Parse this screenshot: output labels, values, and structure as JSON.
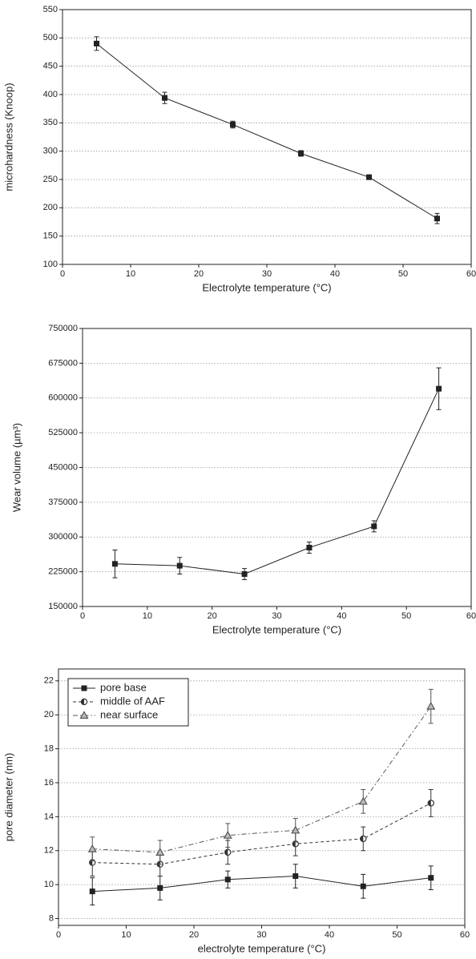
{
  "chart_data": [
    {
      "type": "line",
      "x_label": "Electrolyte temperature (°C)",
      "y_label": "microhardness (Knoop)",
      "x": [
        5,
        15,
        25,
        35,
        45,
        55
      ],
      "values": [
        490,
        394,
        347,
        296,
        254,
        181
      ],
      "errors": [
        12,
        10,
        6,
        5,
        4,
        9
      ],
      "color": "#222222",
      "marker": "square",
      "line_style": "solid",
      "xlim": [
        0,
        60
      ],
      "xticks": [
        0,
        10,
        20,
        30,
        40,
        50,
        60
      ],
      "ylim": [
        100,
        550
      ],
      "yticks": [
        100,
        150,
        200,
        250,
        300,
        350,
        400,
        450,
        500,
        550
      ],
      "grid": true
    },
    {
      "type": "line",
      "x_label": "Electrolyte temperature (°C)",
      "y_label": "Wear volume (µm³)",
      "x": [
        5,
        15,
        25,
        35,
        45,
        55
      ],
      "values": [
        242000,
        238000,
        220000,
        277000,
        323000,
        620000
      ],
      "errors": [
        30000,
        18000,
        12000,
        12000,
        12000,
        45000
      ],
      "color": "#222222",
      "marker": "square",
      "line_style": "solid",
      "xlim": [
        0,
        60
      ],
      "xticks": [
        0,
        10,
        20,
        30,
        40,
        50,
        60
      ],
      "ylim": [
        150000,
        750000
      ],
      "yticks": [
        150000,
        225000,
        300000,
        375000,
        450000,
        525000,
        600000,
        675000,
        750000
      ],
      "grid": true
    },
    {
      "type": "line",
      "x_label": "electrolyte temperature (°C)",
      "y_label": "pore diameter (nm)",
      "x": [
        5,
        15,
        25,
        35,
        45,
        55
      ],
      "series": [
        {
          "name": "pore base",
          "color": "#222222",
          "marker": "square",
          "line_style": "solid",
          "values": [
            9.6,
            9.8,
            10.3,
            10.5,
            9.9,
            10.4
          ],
          "errors": [
            0.8,
            0.7,
            0.5,
            0.7,
            0.7,
            0.7
          ]
        },
        {
          "name": "middle of AAF",
          "color": "#333333",
          "marker": "circle",
          "line_style": "dashed",
          "values": [
            11.3,
            11.2,
            11.9,
            12.4,
            12.7,
            14.8
          ],
          "errors": [
            0.8,
            0.7,
            0.7,
            0.7,
            0.7,
            0.8
          ]
        },
        {
          "name": "near surface",
          "color": "#555555",
          "marker": "triangle",
          "line_style": "dashdot",
          "values": [
            12.1,
            11.9,
            12.9,
            13.2,
            14.9,
            20.5
          ],
          "errors": [
            0.7,
            0.7,
            0.7,
            0.7,
            0.7,
            1.0
          ]
        }
      ],
      "legend": "top-left",
      "xlim": [
        0,
        60
      ],
      "xticks": [
        0,
        10,
        20,
        30,
        40,
        50,
        60
      ],
      "ylim": [
        7.6,
        22.7
      ],
      "yticks": [
        8,
        10,
        12,
        14,
        16,
        18,
        20,
        22
      ],
      "grid": true
    }
  ]
}
